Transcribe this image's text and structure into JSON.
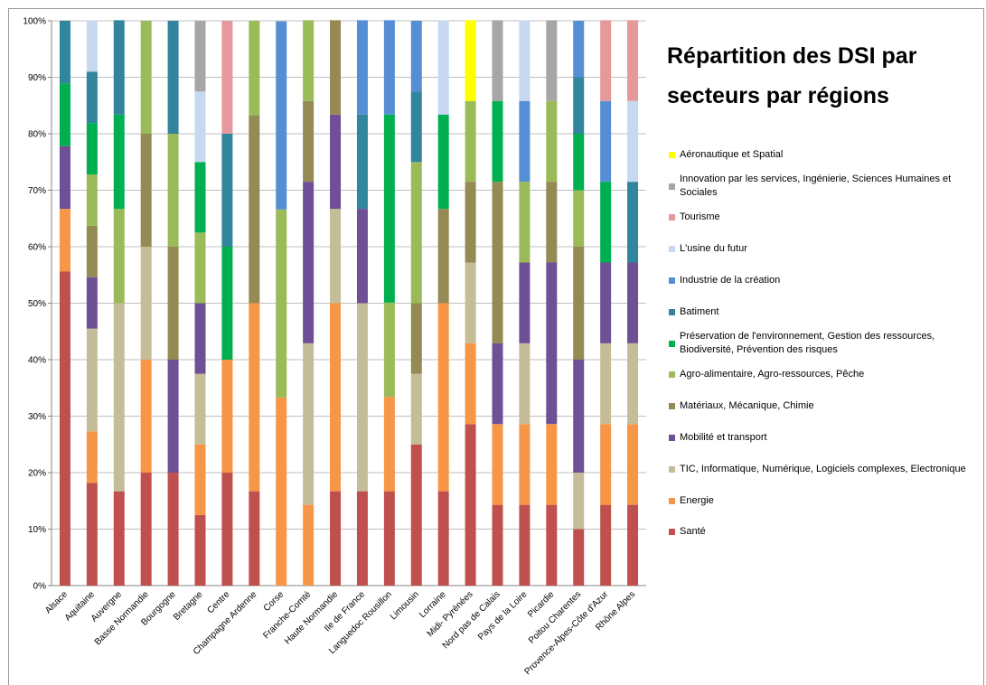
{
  "chart_data": {
    "type": "stacked_bar_100",
    "title": "Répartition des DSI par secteurs par régions",
    "categories": [
      "Alsace",
      "Aquitaine",
      "Auvergne",
      "Basse Normandie",
      "Bourgogne",
      "Bretagne",
      "Centre",
      "Champagne Ardenne",
      "Corse",
      "Franche-Comté",
      "Haute Normandie",
      "Ile de France",
      "Languedoc Rousillon",
      "Limousin",
      "Lorraine",
      "Midi- Pyrénées",
      "Nord pas de Calais",
      "Pays de la Loire",
      "Picardie",
      "Poitou Charentes",
      "Provence-Alpes-Côte d'Azur",
      "Rhône Alpes"
    ],
    "ylim": [
      0,
      100
    ],
    "yticks": [
      {
        "value": 0,
        "label": "0%"
      },
      {
        "value": 10,
        "label": "10%"
      },
      {
        "value": 20,
        "label": "20%"
      },
      {
        "value": 30,
        "label": "30%"
      },
      {
        "value": 40,
        "label": "40%"
      },
      {
        "value": 50,
        "label": "50%"
      },
      {
        "value": 60,
        "label": "60%"
      },
      {
        "value": 70,
        "label": "70%"
      },
      {
        "value": 80,
        "label": "80%"
      },
      {
        "value": 90,
        "label": "90%"
      },
      {
        "value": 100,
        "label": "100%"
      }
    ],
    "grid": true,
    "series": [
      {
        "name": "Santé",
        "color": "#c0504d",
        "values": [
          55.6,
          18.2,
          16.7,
          20,
          20,
          12.5,
          20,
          16.7,
          0,
          0,
          16.7,
          16.7,
          16.7,
          25,
          16.7,
          28.6,
          14.3,
          14.3,
          14.3,
          10,
          14.3,
          14.3
        ]
      },
      {
        "name": "Energie",
        "color": "#f79646",
        "values": [
          11.1,
          9.1,
          0,
          20,
          0,
          12.5,
          20,
          33.3,
          33.3,
          14.3,
          33.3,
          0,
          16.7,
          0,
          33.3,
          14.3,
          14.3,
          14.3,
          14.3,
          0,
          14.3,
          14.3
        ]
      },
      {
        "name": "TIC, Informatique, Numérique, Logiciels complexes, Electronique",
        "color": "#c4bd97",
        "values": [
          0,
          18.2,
          33.3,
          20,
          0,
          12.5,
          0,
          0,
          0,
          28.6,
          16.7,
          33.3,
          0,
          12.5,
          0,
          14.3,
          0,
          14.3,
          0,
          10,
          14.3,
          14.3
        ]
      },
      {
        "name": "Mobilité et transport",
        "color": "#6e5096",
        "values": [
          11.1,
          9.1,
          0,
          0,
          20,
          12.5,
          0,
          0,
          0,
          28.6,
          16.7,
          16.7,
          0,
          0,
          0,
          0,
          14.3,
          14.3,
          28.6,
          20,
          14.3,
          14.3
        ]
      },
      {
        "name": "Matériaux, Mécanique, Chimie",
        "color": "#948a54",
        "values": [
          0,
          9.1,
          0,
          20,
          20,
          0,
          0,
          33.3,
          0,
          14.3,
          16.7,
          0,
          0,
          12.5,
          16.7,
          14.3,
          28.6,
          0,
          14.3,
          20,
          0,
          0
        ]
      },
      {
        "name": "Agro-alimentaire, Agro-ressources, Pêche",
        "color": "#9bbb59",
        "values": [
          0,
          9.1,
          16.7,
          20,
          20,
          12.5,
          0,
          16.7,
          33.3,
          14.3,
          0,
          0,
          16.7,
          25,
          0,
          14.3,
          0,
          14.3,
          14.3,
          10,
          0,
          0
        ]
      },
      {
        "name": "Préservation de l'environnement, Gestion des ressources, Biodiversité, Prévention des risques",
        "color": "#00b050",
        "values": [
          11.1,
          9.1,
          16.7,
          0,
          0,
          12.5,
          20,
          0,
          0,
          0,
          0,
          0,
          33.3,
          0,
          16.7,
          0,
          14.3,
          0,
          0,
          10,
          14.3,
          0
        ]
      },
      {
        "name": "Batiment",
        "color": "#31859c",
        "values": [
          11.1,
          9.1,
          16.7,
          0,
          20,
          0,
          20,
          0,
          0,
          0,
          0,
          16.7,
          0,
          12.5,
          0,
          0,
          0,
          0,
          0,
          10,
          0,
          14.3
        ]
      },
      {
        "name": "Industrie de la création",
        "color": "#558ed5",
        "values": [
          0,
          0,
          0,
          0,
          0,
          0,
          0,
          0,
          33.3,
          0,
          0,
          16.7,
          16.7,
          12.5,
          0,
          0,
          0,
          14.3,
          0,
          10,
          14.3,
          0
        ]
      },
      {
        "name": "L'usine du futur",
        "color": "#c6d9f1",
        "values": [
          0,
          9.1,
          0,
          0,
          0,
          12.5,
          0,
          0,
          0,
          0,
          0,
          0,
          0,
          0,
          16.7,
          0,
          0,
          14.3,
          0,
          0,
          0,
          14.3
        ]
      },
      {
        "name": "Tourisme",
        "color": "#e6999a",
        "values": [
          0,
          0,
          0,
          0,
          0,
          0,
          20,
          0,
          0,
          0,
          0,
          0,
          0,
          0,
          0,
          0,
          0,
          0,
          0,
          0,
          14.3,
          14.3
        ]
      },
      {
        "name": "Innovation par les services, Ingénierie, Sciences Humaines et Sociales",
        "color": "#a6a6a6",
        "values": [
          0,
          0,
          0,
          0,
          0,
          12.5,
          0,
          0,
          0,
          0,
          0,
          0,
          0,
          0,
          0,
          0,
          14.3,
          0,
          14.3,
          0,
          0,
          0
        ]
      },
      {
        "name": "Aéronautique et Spatial",
        "color": "#ffff00",
        "values": [
          0,
          0,
          0,
          0,
          0,
          0,
          0,
          0,
          0,
          0,
          0,
          0,
          0,
          0,
          0,
          14.3,
          0,
          0,
          0,
          0,
          0,
          0
        ]
      }
    ]
  }
}
